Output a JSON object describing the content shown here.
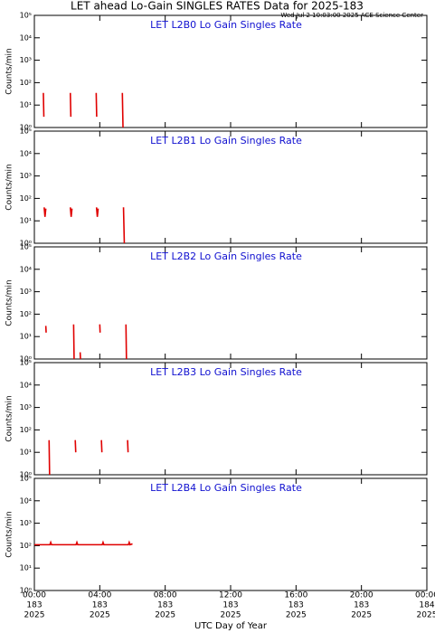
{
  "header": {
    "title": "LET ahead Lo-Gain SINGLES RATES Data for 2025-183",
    "timestamp": "Wed Jul  2 10:03:00 2025 ACE Science Center"
  },
  "x_axis": {
    "label": "UTC Day of Year",
    "xlim": [
      0,
      24
    ],
    "xticks": [
      {
        "value": 0,
        "label": "00:00"
      },
      {
        "value": 4,
        "label": "04:00"
      },
      {
        "value": 8,
        "label": "08:00"
      },
      {
        "value": 12,
        "label": "12:00"
      },
      {
        "value": 16,
        "label": "16:00"
      },
      {
        "value": 20,
        "label": "20:00"
      },
      {
        "value": 24,
        "label": "00:00"
      }
    ],
    "xtick_days": [
      "183",
      "183",
      "183",
      "183",
      "183",
      "183",
      "184"
    ],
    "xtick_years": [
      "2025",
      "2025",
      "2025",
      "2025",
      "2025",
      "2025",
      "2025"
    ]
  },
  "chart_data": [
    {
      "type": "line",
      "title": "LET L2B0 Lo Gain Singles Rate",
      "ylabel": "Counts/min",
      "log_scale": true,
      "ylim": [
        1,
        100000
      ],
      "yticks": [
        {
          "value": 1,
          "label": "10⁰"
        },
        {
          "value": 10,
          "label": "10¹"
        },
        {
          "value": 100,
          "label": "10²"
        },
        {
          "value": 1000,
          "label": "10³"
        },
        {
          "value": 10000,
          "label": "10⁴"
        },
        {
          "value": 100000,
          "label": "10⁵"
        }
      ],
      "color": "#e00000",
      "x": [
        0.55,
        0.58,
        0.58,
        2.2,
        2.23,
        2.23,
        3.78,
        3.81,
        3.81,
        5.38,
        5.42
      ],
      "values": [
        35,
        3,
        null,
        35,
        3,
        null,
        35,
        3,
        null,
        35,
        1
      ]
    },
    {
      "type": "line",
      "title": "LET L2B1 Lo Gain Singles Rate",
      "ylabel": "Counts/min",
      "log_scale": true,
      "ylim": [
        1,
        100000
      ],
      "yticks": [
        {
          "value": 1,
          "label": "10⁰"
        },
        {
          "value": 10,
          "label": "10¹"
        },
        {
          "value": 100,
          "label": "10²"
        },
        {
          "value": 1000,
          "label": "10³"
        },
        {
          "value": 10000,
          "label": "10⁴"
        },
        {
          "value": 100000,
          "label": "10⁵"
        }
      ],
      "color": "#e00000",
      "x": [
        0.6,
        0.65,
        0.7,
        0.7,
        2.2,
        2.25,
        2.3,
        2.3,
        3.8,
        3.85,
        3.9,
        3.9,
        5.45,
        5.5
      ],
      "values": [
        40,
        15,
        35,
        null,
        40,
        15,
        35,
        null,
        40,
        15,
        35,
        null,
        40,
        1
      ]
    },
    {
      "type": "line",
      "title": "LET L2B2 Lo Gain Singles Rate",
      "ylabel": "Counts/min",
      "log_scale": true,
      "ylim": [
        1,
        100000
      ],
      "yticks": [
        {
          "value": 1,
          "label": "10⁰"
        },
        {
          "value": 10,
          "label": "10¹"
        },
        {
          "value": 100,
          "label": "10²"
        },
        {
          "value": 1000,
          "label": "10³"
        },
        {
          "value": 10000,
          "label": "10⁴"
        },
        {
          "value": 100000,
          "label": "10⁵"
        }
      ],
      "color": "#e00000",
      "x": [
        0.7,
        0.72,
        0.72,
        2.4,
        2.43,
        2.43,
        2.8,
        2.82,
        2.82,
        4.0,
        4.02,
        4.02,
        5.6,
        5.63
      ],
      "values": [
        30,
        15,
        null,
        35,
        1,
        null,
        2,
        1,
        null,
        35,
        15,
        null,
        35,
        1
      ]
    },
    {
      "type": "line",
      "title": "LET L2B3 Lo Gain Singles Rate",
      "ylabel": "Counts/min",
      "log_scale": true,
      "ylim": [
        1,
        100000
      ],
      "yticks": [
        {
          "value": 1,
          "label": "10⁰"
        },
        {
          "value": 10,
          "label": "10¹"
        },
        {
          "value": 100,
          "label": "10²"
        },
        {
          "value": 1000,
          "label": "10³"
        },
        {
          "value": 10000,
          "label": "10⁴"
        },
        {
          "value": 100000,
          "label": "10⁵"
        }
      ],
      "color": "#e00000",
      "x": [
        0.9,
        0.93,
        0.93,
        2.5,
        2.53,
        2.53,
        4.1,
        4.13,
        4.13,
        5.7,
        5.73
      ],
      "values": [
        35,
        1,
        null,
        35,
        10,
        null,
        35,
        10,
        null,
        35,
        10
      ]
    },
    {
      "type": "line",
      "title": "LET L2B4 Lo Gain Singles Rate",
      "ylabel": "Counts/min",
      "log_scale": true,
      "ylim": [
        1,
        100000
      ],
      "yticks": [
        {
          "value": 1,
          "label": "10⁰"
        },
        {
          "value": 10,
          "label": "10¹"
        },
        {
          "value": 100,
          "label": "10²"
        },
        {
          "value": 1000,
          "label": "10³"
        },
        {
          "value": 10000,
          "label": "10⁴"
        },
        {
          "value": 100000,
          "label": "10⁵"
        }
      ],
      "color": "#e00000",
      "x": [
        0.0,
        0.95,
        1.0,
        1.05,
        2.55,
        2.6,
        2.65,
        4.15,
        4.2,
        4.25,
        5.75,
        5.8,
        5.85,
        6.0
      ],
      "values": [
        110,
        110,
        140,
        110,
        110,
        140,
        110,
        110,
        140,
        110,
        110,
        140,
        110,
        120
      ]
    }
  ]
}
